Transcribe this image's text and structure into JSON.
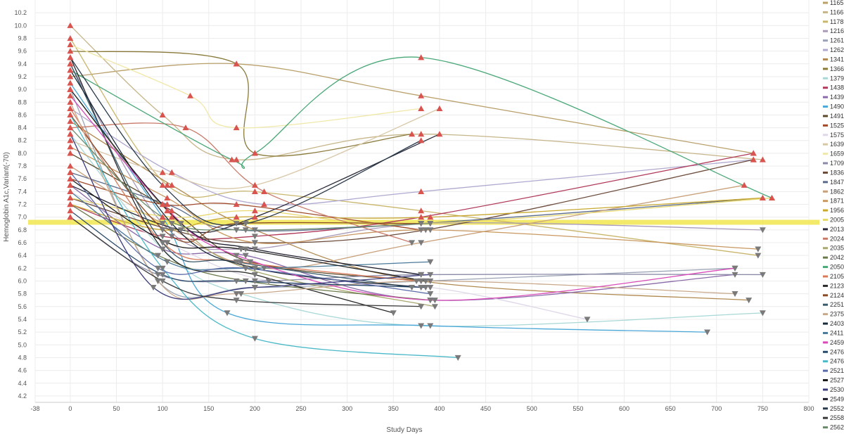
{
  "chart_data": {
    "type": "line",
    "xlabel": "Study Days",
    "ylabel": "Hemoglobin A1c,Variant(-70)",
    "xlim": [
      -38,
      800
    ],
    "ylim": [
      4.1,
      10.4
    ],
    "x_ticks": [
      -38,
      0,
      50,
      100,
      150,
      200,
      250,
      300,
      350,
      400,
      450,
      500,
      550,
      600,
      650,
      700,
      750,
      800
    ],
    "y_ticks": [
      4.2,
      4.4,
      4.6,
      4.8,
      5.0,
      5.2,
      5.4,
      5.6,
      5.8,
      6.0,
      6.2,
      6.4,
      6.6,
      6.8,
      7.0,
      7.2,
      7.4,
      7.6,
      7.8,
      8.0,
      8.2,
      8.4,
      8.6,
      8.8,
      9.0,
      9.2,
      9.4,
      9.6,
      9.8,
      10.0,
      10.2
    ],
    "reference_line": {
      "y": 6.92,
      "color": "#f2e85a"
    },
    "grid": true,
    "legend_position": "right",
    "up_marker_color": "#d9534f",
    "down_marker_color": "#7a7a7a",
    "series": [
      {
        "name": "1165",
        "color": "#b9a06a",
        "points": [
          [
            0,
            9.2
          ],
          [
            180,
            9.4
          ],
          [
            380,
            8.9
          ],
          [
            740,
            8.0
          ]
        ]
      },
      {
        "name": "1166",
        "color": "#c7b58a",
        "points": [
          [
            0,
            10.0
          ],
          [
            100,
            8.6
          ],
          [
            180,
            7.9
          ],
          [
            380,
            8.3
          ],
          [
            750,
            7.9
          ]
        ]
      },
      {
        "name": "1178",
        "color": "#c9b66c",
        "points": [
          [
            0,
            9.8
          ],
          [
            105,
            7.5
          ],
          [
            200,
            7.4
          ],
          [
            380,
            7.1
          ],
          [
            745,
            6.4
          ]
        ]
      },
      {
        "name": "1216",
        "color": "#a89ab8",
        "points": [
          [
            0,
            9.4
          ],
          [
            100,
            6.9
          ],
          [
            190,
            6.5
          ],
          [
            390,
            6.9
          ],
          [
            750,
            6.8
          ]
        ]
      },
      {
        "name": "1261",
        "color": "#9aa3b5",
        "points": [
          [
            0,
            9.0
          ],
          [
            95,
            6.0
          ],
          [
            200,
            5.9
          ],
          [
            385,
            6.0
          ],
          [
            720,
            6.2
          ]
        ]
      },
      {
        "name": "1262",
        "color": "#b0a8cf",
        "points": [
          [
            0,
            8.7
          ],
          [
            110,
            7.7
          ],
          [
            210,
            7.2
          ],
          [
            380,
            7.4
          ],
          [
            740,
            7.9
          ]
        ]
      },
      {
        "name": "1341",
        "color": "#b08a50",
        "points": [
          [
            0,
            8.5
          ],
          [
            110,
            7.5
          ],
          [
            200,
            6.8
          ],
          [
            380,
            6.0
          ],
          [
            735,
            5.7
          ]
        ]
      },
      {
        "name": "1366",
        "color": "#8a7a3a",
        "points": [
          [
            0,
            9.6
          ],
          [
            180,
            9.4
          ],
          [
            200,
            8.0
          ],
          [
            370,
            8.3
          ]
        ]
      },
      {
        "name": "1379",
        "color": "#a8d8d8",
        "points": [
          [
            0,
            8.3
          ],
          [
            100,
            6.5
          ],
          [
            185,
            5.8
          ],
          [
            380,
            5.3
          ],
          [
            750,
            5.5
          ]
        ]
      },
      {
        "name": "1438",
        "color": "#b03a5a",
        "points": [
          [
            0,
            7.2
          ],
          [
            100,
            6.7
          ],
          [
            200,
            6.7
          ],
          [
            380,
            7.0
          ],
          [
            740,
            8.0
          ]
        ]
      },
      {
        "name": "1439",
        "color": "#8a6aa8",
        "points": [
          [
            0,
            7.5
          ],
          [
            100,
            6.5
          ],
          [
            190,
            6.4
          ],
          [
            390,
            5.7
          ],
          [
            720,
            6.1
          ]
        ]
      },
      {
        "name": "1490",
        "color": "#4aa8d8",
        "points": [
          [
            0,
            9.1
          ],
          [
            100,
            7.0
          ],
          [
            170,
            5.5
          ],
          [
            390,
            5.3
          ],
          [
            690,
            5.2
          ]
        ]
      },
      {
        "name": "1491",
        "color": "#5a4a2a",
        "points": [
          [
            0,
            8.0
          ],
          [
            110,
            7.1
          ],
          [
            195,
            6.3
          ],
          [
            380,
            6.0
          ]
        ]
      },
      {
        "name": "1525",
        "color": "#a04a2a",
        "points": [
          [
            0,
            7.6
          ],
          [
            100,
            7.2
          ],
          [
            180,
            7.2
          ],
          [
            380,
            6.8
          ]
        ]
      },
      {
        "name": "1575",
        "color": "#e0d8e8",
        "points": [
          [
            0,
            7.4
          ],
          [
            105,
            6.6
          ],
          [
            215,
            6.0
          ],
          [
            390,
            5.9
          ],
          [
            560,
            5.4
          ]
        ]
      },
      {
        "name": "1639",
        "color": "#d8c8a8",
        "points": [
          [
            0,
            8.2
          ],
          [
            100,
            7.7
          ],
          [
            200,
            7.5
          ],
          [
            400,
            8.7
          ]
        ]
      },
      {
        "name": "1659",
        "color": "#f0e8a8",
        "points": [
          [
            0,
            9.7
          ],
          [
            130,
            8.9
          ],
          [
            180,
            8.4
          ],
          [
            380,
            8.7
          ]
        ]
      },
      {
        "name": "1709",
        "color": "#8a8aa8",
        "points": [
          [
            0,
            7.0
          ],
          [
            95,
            6.1
          ],
          [
            200,
            6.0
          ],
          [
            380,
            6.1
          ],
          [
            750,
            6.1
          ]
        ]
      },
      {
        "name": "1836",
        "color": "#6a4a3a",
        "points": [
          [
            0,
            7.3
          ],
          [
            110,
            6.8
          ],
          [
            200,
            6.6
          ],
          [
            385,
            6.8
          ],
          [
            740,
            7.9
          ]
        ]
      },
      {
        "name": "1847",
        "color": "#5a6a8a",
        "points": [
          [
            0,
            7.7
          ],
          [
            105,
            7.2
          ],
          [
            180,
            6.8
          ],
          [
            380,
            6.9
          ],
          [
            750,
            7.3
          ]
        ]
      },
      {
        "name": "1862",
        "color": "#c8a07a",
        "points": [
          [
            0,
            7.8
          ],
          [
            100,
            6.9
          ],
          [
            210,
            6.2
          ],
          [
            380,
            6.6
          ],
          [
            730,
            7.5
          ]
        ]
      },
      {
        "name": "1871",
        "color": "#c89860",
        "points": [
          [
            0,
            8.1
          ],
          [
            105,
            7.3
          ],
          [
            200,
            6.6
          ],
          [
            390,
            6.8
          ],
          [
            745,
            6.5
          ]
        ]
      },
      {
        "name": "1956",
        "color": "#c8a830",
        "points": [
          [
            0,
            7.2
          ],
          [
            100,
            6.8
          ],
          [
            180,
            7.0
          ],
          [
            390,
            7.0
          ],
          [
            750,
            7.3
          ]
        ]
      },
      {
        "name": "2005",
        "color": "#e8d870",
        "points": [
          [
            0,
            7.3
          ],
          [
            110,
            7.0
          ],
          [
            200,
            7.1
          ],
          [
            380,
            6.9
          ],
          [
            760,
            7.3
          ]
        ]
      },
      {
        "name": "2013",
        "color": "#2a2a3a",
        "points": [
          [
            0,
            7.5
          ],
          [
            120,
            6.8
          ],
          [
            200,
            7.0
          ],
          [
            400,
            8.3
          ]
        ]
      },
      {
        "name": "2024",
        "color": "#c87a6a",
        "points": [
          [
            0,
            8.4
          ],
          [
            125,
            8.4
          ],
          [
            210,
            7.4
          ],
          [
            370,
            6.6
          ]
        ]
      },
      {
        "name": "2035",
        "color": "#a8a870",
        "points": [
          [
            0,
            9.0
          ],
          [
            105,
            7.1
          ],
          [
            190,
            6.2
          ],
          [
            395,
            5.6
          ]
        ]
      },
      {
        "name": "2042",
        "color": "#6a7a4a",
        "points": [
          [
            0,
            7.2
          ],
          [
            95,
            6.4
          ],
          [
            190,
            6.0
          ],
          [
            390,
            5.7
          ]
        ]
      },
      {
        "name": "2050",
        "color": "#4aa878",
        "points": [
          [
            0,
            9.3
          ],
          [
            175,
            7.9
          ],
          [
            200,
            8.0
          ],
          [
            380,
            9.5
          ],
          [
            760,
            7.3
          ]
        ]
      },
      {
        "name": "2105",
        "color": "#d87a5a",
        "points": [
          [
            0,
            8.7
          ],
          [
            100,
            6.6
          ],
          [
            185,
            6.3
          ],
          [
            375,
            6.0
          ]
        ]
      },
      {
        "name": "2123",
        "color": "#2a2a2a",
        "points": [
          [
            0,
            9.5
          ],
          [
            100,
            6.5
          ],
          [
            200,
            6.1
          ],
          [
            350,
            5.5
          ]
        ]
      },
      {
        "name": "2124",
        "color": "#8a4a2a",
        "points": [
          [
            0,
            8.6
          ],
          [
            110,
            6.7
          ],
          [
            180,
            6.9
          ],
          [
            380,
            6.9
          ]
        ]
      },
      {
        "name": "2251",
        "color": "#3a5a6a",
        "points": [
          [
            0,
            9.4
          ],
          [
            100,
            6.6
          ],
          [
            180,
            6.3
          ],
          [
            370,
            5.9
          ]
        ]
      },
      {
        "name": "2375",
        "color": "#c8a88a",
        "points": [
          [
            0,
            8.8
          ],
          [
            95,
            6.0
          ],
          [
            180,
            5.8
          ],
          [
            390,
            6.0
          ],
          [
            720,
            5.8
          ]
        ]
      },
      {
        "name": "2403",
        "color": "#1a2a3a",
        "points": [
          [
            0,
            9.3
          ],
          [
            110,
            6.9
          ],
          [
            200,
            6.2
          ],
          [
            380,
            5.9
          ]
        ]
      },
      {
        "name": "2411",
        "color": "#4a7a9a",
        "points": [
          [
            0,
            7.4
          ],
          [
            105,
            6.3
          ],
          [
            190,
            6.2
          ],
          [
            390,
            6.3
          ]
        ]
      },
      {
        "name": "2459",
        "color": "#d84ab8",
        "points": [
          [
            0,
            8.9
          ],
          [
            100,
            7.2
          ],
          [
            180,
            6.4
          ],
          [
            395,
            5.7
          ],
          [
            720,
            6.2
          ]
        ]
      },
      {
        "name": "2476",
        "color": "#2a4a6a",
        "points": [
          [
            0,
            7.1
          ],
          [
            100,
            6.1
          ],
          [
            180,
            6.0
          ],
          [
            385,
            5.9
          ]
        ]
      },
      {
        "name": "2476",
        "color": "#4ab8c8",
        "points": [
          [
            0,
            8.6
          ],
          [
            100,
            6.2
          ],
          [
            200,
            5.1
          ],
          [
            420,
            4.8
          ]
        ]
      },
      {
        "name": "2521",
        "color": "#5a6aa8",
        "points": [
          [
            0,
            7.7
          ],
          [
            95,
            6.2
          ],
          [
            190,
            6.2
          ],
          [
            390,
            5.8
          ]
        ]
      },
      {
        "name": "2527",
        "color": "#1a1a1a",
        "points": [
          [
            0,
            7.6
          ],
          [
            105,
            6.6
          ],
          [
            185,
            6.5
          ],
          [
            385,
            6.0
          ]
        ]
      },
      {
        "name": "2530",
        "color": "#3a3a7a",
        "points": [
          [
            0,
            8.3
          ],
          [
            90,
            5.9
          ],
          [
            200,
            5.9
          ],
          [
            390,
            6.1
          ]
        ]
      },
      {
        "name": "2549",
        "color": "#1a1a2a",
        "points": [
          [
            0,
            9.0
          ],
          [
            120,
            6.9
          ],
          [
            200,
            6.5
          ],
          [
            380,
            6.1
          ]
        ]
      },
      {
        "name": "2552",
        "color": "#2a3a4a",
        "points": [
          [
            0,
            9.5
          ],
          [
            100,
            7.5
          ],
          [
            190,
            6.9
          ],
          [
            380,
            8.2
          ]
        ]
      },
      {
        "name": "2558",
        "color": "#3a3a3a",
        "points": [
          [
            0,
            7.0
          ],
          [
            100,
            6.0
          ],
          [
            180,
            5.7
          ],
          [
            380,
            5.6
          ]
        ]
      },
      {
        "name": "2562",
        "color": "#6a8a6a",
        "points": [
          [
            0,
            8.4
          ],
          [
            100,
            7.0
          ],
          [
            190,
            6.8
          ],
          [
            390,
            6.9
          ]
        ]
      }
    ]
  }
}
